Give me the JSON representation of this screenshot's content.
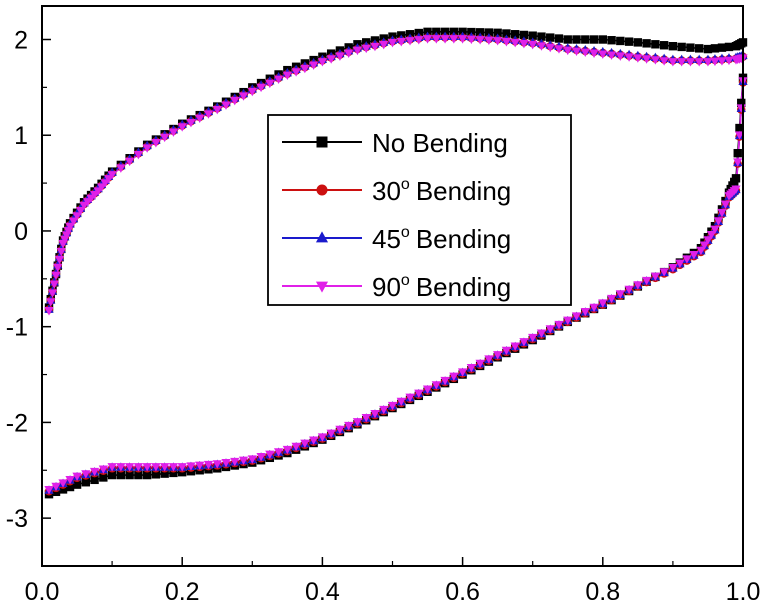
{
  "chart_data": {
    "type": "line",
    "title": "",
    "xlabel": "",
    "ylabel": "",
    "xlim": [
      0.0,
      1.0
    ],
    "ylim": [
      -3.5,
      2.35
    ],
    "x_ticks": [
      {
        "value": 0.0,
        "label": "0.0"
      },
      {
        "value": 0.2,
        "label": "0.2"
      },
      {
        "value": 0.4,
        "label": "0.4"
      },
      {
        "value": 0.6,
        "label": "0.6"
      },
      {
        "value": 0.8,
        "label": "0.8"
      },
      {
        "value": 1.0,
        "label": "1.0"
      }
    ],
    "y_ticks": [
      {
        "value": -3,
        "label": "-3"
      },
      {
        "value": -2,
        "label": "-2"
      },
      {
        "value": -1,
        "label": "-1"
      },
      {
        "value": 0,
        "label": "0"
      },
      {
        "value": 1,
        "label": "1"
      },
      {
        "value": 2,
        "label": "2"
      }
    ],
    "grid": false,
    "legend_position": "center",
    "series": [
      {
        "name": "No Bending",
        "superscript": "",
        "suffix": "",
        "color": "#000000",
        "marker": "square",
        "upper": [
          [
            0.01,
            -0.8
          ],
          [
            0.02,
            -0.45
          ],
          [
            0.03,
            -0.1
          ],
          [
            0.04,
            0.08
          ],
          [
            0.06,
            0.3
          ],
          [
            0.08,
            0.45
          ],
          [
            0.1,
            0.62
          ],
          [
            0.15,
            0.9
          ],
          [
            0.2,
            1.12
          ],
          [
            0.25,
            1.3
          ],
          [
            0.3,
            1.5
          ],
          [
            0.35,
            1.68
          ],
          [
            0.4,
            1.82
          ],
          [
            0.45,
            1.95
          ],
          [
            0.5,
            2.03
          ],
          [
            0.55,
            2.08
          ],
          [
            0.6,
            2.08
          ],
          [
            0.65,
            2.07
          ],
          [
            0.7,
            2.04
          ],
          [
            0.75,
            2.0
          ],
          [
            0.8,
            2.0
          ],
          [
            0.85,
            1.97
          ],
          [
            0.9,
            1.93
          ],
          [
            0.95,
            1.9
          ],
          [
            0.99,
            1.93
          ],
          [
            1.0,
            1.97
          ]
        ],
        "lower": [
          [
            0.01,
            -2.75
          ],
          [
            0.05,
            -2.65
          ],
          [
            0.1,
            -2.55
          ],
          [
            0.15,
            -2.55
          ],
          [
            0.2,
            -2.52
          ],
          [
            0.25,
            -2.48
          ],
          [
            0.3,
            -2.42
          ],
          [
            0.35,
            -2.32
          ],
          [
            0.4,
            -2.18
          ],
          [
            0.45,
            -2.02
          ],
          [
            0.5,
            -1.85
          ],
          [
            0.55,
            -1.68
          ],
          [
            0.6,
            -1.5
          ],
          [
            0.65,
            -1.32
          ],
          [
            0.7,
            -1.14
          ],
          [
            0.75,
            -0.95
          ],
          [
            0.8,
            -0.77
          ],
          [
            0.85,
            -0.58
          ],
          [
            0.9,
            -0.38
          ],
          [
            0.94,
            -0.18
          ],
          [
            0.96,
            0.05
          ],
          [
            0.98,
            0.4
          ],
          [
            0.99,
            0.55
          ],
          [
            1.0,
            1.6
          ]
        ]
      },
      {
        "name": "Bending",
        "superscript": "o",
        "prefix": "30",
        "color": "#cc1010",
        "marker": "circle",
        "upper": [
          [
            0.01,
            -0.82
          ],
          [
            0.02,
            -0.45
          ],
          [
            0.03,
            -0.12
          ],
          [
            0.04,
            0.06
          ],
          [
            0.06,
            0.28
          ],
          [
            0.08,
            0.43
          ],
          [
            0.1,
            0.6
          ],
          [
            0.15,
            0.88
          ],
          [
            0.2,
            1.1
          ],
          [
            0.25,
            1.28
          ],
          [
            0.3,
            1.47
          ],
          [
            0.35,
            1.64
          ],
          [
            0.4,
            1.78
          ],
          [
            0.45,
            1.9
          ],
          [
            0.5,
            1.98
          ],
          [
            0.55,
            2.02
          ],
          [
            0.6,
            2.02
          ],
          [
            0.65,
            2.0
          ],
          [
            0.7,
            1.96
          ],
          [
            0.75,
            1.9
          ],
          [
            0.8,
            1.86
          ],
          [
            0.85,
            1.82
          ],
          [
            0.9,
            1.78
          ],
          [
            0.95,
            1.78
          ],
          [
            0.99,
            1.8
          ],
          [
            1.0,
            1.82
          ]
        ],
        "lower": [
          [
            0.01,
            -2.72
          ],
          [
            0.05,
            -2.58
          ],
          [
            0.1,
            -2.48
          ],
          [
            0.15,
            -2.48
          ],
          [
            0.2,
            -2.48
          ],
          [
            0.25,
            -2.45
          ],
          [
            0.3,
            -2.4
          ],
          [
            0.35,
            -2.3
          ],
          [
            0.4,
            -2.17
          ],
          [
            0.45,
            -2.01
          ],
          [
            0.5,
            -1.84
          ],
          [
            0.55,
            -1.67
          ],
          [
            0.6,
            -1.49
          ],
          [
            0.65,
            -1.31
          ],
          [
            0.7,
            -1.13
          ],
          [
            0.75,
            -0.95
          ],
          [
            0.8,
            -0.77
          ],
          [
            0.85,
            -0.58
          ],
          [
            0.9,
            -0.4
          ],
          [
            0.94,
            -0.22
          ],
          [
            0.96,
            0.0
          ],
          [
            0.98,
            0.35
          ],
          [
            0.99,
            0.42
          ],
          [
            1.0,
            1.55
          ]
        ]
      },
      {
        "name": "Bending",
        "superscript": "o",
        "prefix": "45",
        "color": "#1a1acc",
        "marker": "triangle-up",
        "upper": [
          [
            0.01,
            -0.82
          ],
          [
            0.02,
            -0.44
          ],
          [
            0.03,
            -0.11
          ],
          [
            0.04,
            0.07
          ],
          [
            0.06,
            0.29
          ],
          [
            0.08,
            0.44
          ],
          [
            0.1,
            0.61
          ],
          [
            0.15,
            0.89
          ],
          [
            0.2,
            1.11
          ],
          [
            0.25,
            1.29
          ],
          [
            0.3,
            1.48
          ],
          [
            0.35,
            1.65
          ],
          [
            0.4,
            1.79
          ],
          [
            0.45,
            1.91
          ],
          [
            0.5,
            1.99
          ],
          [
            0.55,
            2.03
          ],
          [
            0.6,
            2.03
          ],
          [
            0.65,
            2.01
          ],
          [
            0.7,
            1.97
          ],
          [
            0.75,
            1.91
          ],
          [
            0.8,
            1.87
          ],
          [
            0.85,
            1.83
          ],
          [
            0.9,
            1.79
          ],
          [
            0.95,
            1.79
          ],
          [
            0.99,
            1.81
          ],
          [
            1.0,
            1.83
          ]
        ],
        "lower": [
          [
            0.01,
            -2.71
          ],
          [
            0.05,
            -2.57
          ],
          [
            0.1,
            -2.47
          ],
          [
            0.15,
            -2.47
          ],
          [
            0.2,
            -2.47
          ],
          [
            0.25,
            -2.44
          ],
          [
            0.3,
            -2.39
          ],
          [
            0.35,
            -2.29
          ],
          [
            0.4,
            -2.16
          ],
          [
            0.45,
            -2.0
          ],
          [
            0.5,
            -1.83
          ],
          [
            0.55,
            -1.66
          ],
          [
            0.6,
            -1.48
          ],
          [
            0.65,
            -1.3
          ],
          [
            0.7,
            -1.12
          ],
          [
            0.75,
            -0.94
          ],
          [
            0.8,
            -0.76
          ],
          [
            0.85,
            -0.57
          ],
          [
            0.9,
            -0.39
          ],
          [
            0.94,
            -0.21
          ],
          [
            0.96,
            0.01
          ],
          [
            0.98,
            0.36
          ],
          [
            0.99,
            0.43
          ],
          [
            1.0,
            1.56
          ]
        ]
      },
      {
        "name": "Bending",
        "superscript": "o",
        "prefix": "90",
        "color": "#e020e8",
        "marker": "triangle-down",
        "upper": [
          [
            0.01,
            -0.83
          ],
          [
            0.02,
            -0.46
          ],
          [
            0.03,
            -0.13
          ],
          [
            0.04,
            0.05
          ],
          [
            0.06,
            0.27
          ],
          [
            0.08,
            0.42
          ],
          [
            0.1,
            0.59
          ],
          [
            0.15,
            0.87
          ],
          [
            0.2,
            1.09
          ],
          [
            0.25,
            1.27
          ],
          [
            0.3,
            1.46
          ],
          [
            0.35,
            1.63
          ],
          [
            0.4,
            1.77
          ],
          [
            0.45,
            1.89
          ],
          [
            0.5,
            1.97
          ],
          [
            0.55,
            2.01
          ],
          [
            0.6,
            2.01
          ],
          [
            0.65,
            1.99
          ],
          [
            0.7,
            1.95
          ],
          [
            0.75,
            1.89
          ],
          [
            0.8,
            1.85
          ],
          [
            0.85,
            1.81
          ],
          [
            0.9,
            1.77
          ],
          [
            0.95,
            1.77
          ],
          [
            0.99,
            1.79
          ],
          [
            1.0,
            1.81
          ]
        ],
        "lower": [
          [
            0.01,
            -2.7
          ],
          [
            0.05,
            -2.56
          ],
          [
            0.1,
            -2.46
          ],
          [
            0.15,
            -2.46
          ],
          [
            0.2,
            -2.46
          ],
          [
            0.25,
            -2.43
          ],
          [
            0.3,
            -2.38
          ],
          [
            0.35,
            -2.28
          ],
          [
            0.4,
            -2.15
          ],
          [
            0.45,
            -1.99
          ],
          [
            0.5,
            -1.82
          ],
          [
            0.55,
            -1.65
          ],
          [
            0.6,
            -1.47
          ],
          [
            0.65,
            -1.29
          ],
          [
            0.7,
            -1.11
          ],
          [
            0.75,
            -0.93
          ],
          [
            0.8,
            -0.75
          ],
          [
            0.85,
            -0.56
          ],
          [
            0.9,
            -0.38
          ],
          [
            0.94,
            -0.2
          ],
          [
            0.96,
            0.02
          ],
          [
            0.98,
            0.37
          ],
          [
            0.99,
            0.44
          ],
          [
            1.0,
            1.57
          ]
        ]
      }
    ]
  }
}
